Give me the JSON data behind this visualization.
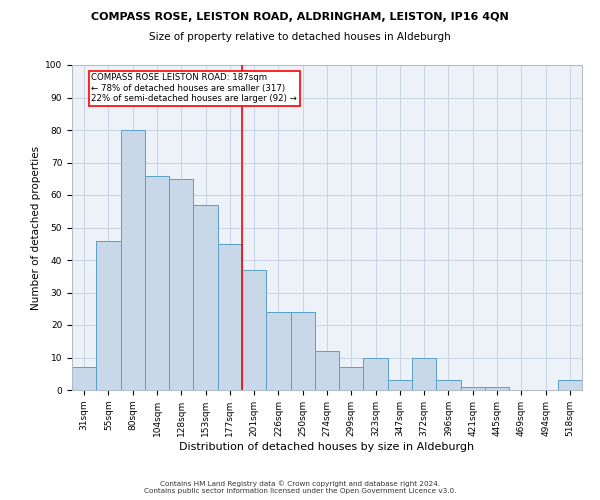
{
  "title": "COMPASS ROSE, LEISTON ROAD, ALDRINGHAM, LEISTON, IP16 4QN",
  "subtitle": "Size of property relative to detached houses in Aldeburgh",
  "xlabel": "Distribution of detached houses by size in Aldeburgh",
  "ylabel": "Number of detached properties",
  "bar_color": "#c8d8e8",
  "bar_edge_color": "#5a9fc8",
  "categories": [
    "31sqm",
    "55sqm",
    "80sqm",
    "104sqm",
    "128sqm",
    "153sqm",
    "177sqm",
    "201sqm",
    "226sqm",
    "250sqm",
    "274sqm",
    "299sqm",
    "323sqm",
    "347sqm",
    "372sqm",
    "396sqm",
    "421sqm",
    "445sqm",
    "469sqm",
    "494sqm",
    "518sqm"
  ],
  "values": [
    7,
    46,
    80,
    66,
    65,
    57,
    45,
    37,
    24,
    24,
    12,
    7,
    10,
    3,
    10,
    3,
    1,
    1,
    0,
    0,
    3
  ],
  "ylim": [
    0,
    100
  ],
  "yticks": [
    0,
    10,
    20,
    30,
    40,
    50,
    60,
    70,
    80,
    90,
    100
  ],
  "annotation_text_line1": "COMPASS ROSE LEISTON ROAD: 187sqm",
  "annotation_text_line2": "← 78% of detached houses are smaller (317)",
  "annotation_text_line3": "22% of semi-detached houses are larger (92) →",
  "footer_line1": "Contains HM Land Registry data © Crown copyright and database right 2024.",
  "footer_line2": "Contains public sector information licensed under the Open Government Licence v3.0.",
  "grid_color": "#c8d4e4",
  "background_color": "#edf2f9",
  "vline_pos": 6.5,
  "title_fontsize": 8.0,
  "subtitle_fontsize": 7.5,
  "ylabel_fontsize": 7.5,
  "xlabel_fontsize": 8.0,
  "tick_fontsize": 6.5,
  "annot_fontsize": 6.2,
  "footer_fontsize": 5.2
}
